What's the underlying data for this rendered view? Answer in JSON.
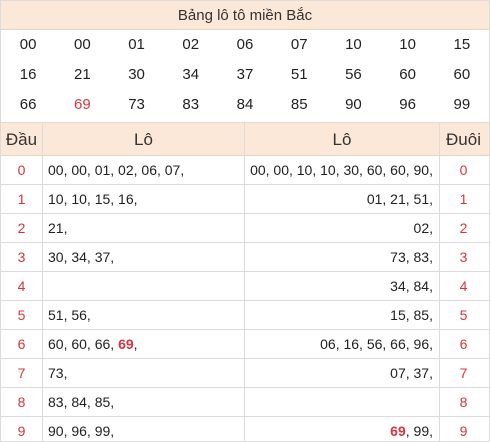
{
  "title": "Bảng lô tô miền Bắc",
  "numbers": [
    [
      "00",
      "00",
      "01",
      "02",
      "06",
      "07",
      "10",
      "10",
      "15"
    ],
    [
      "16",
      "21",
      "30",
      "34",
      "37",
      "51",
      "56",
      "60",
      "60"
    ],
    [
      "66",
      "69",
      "73",
      "83",
      "84",
      "85",
      "90",
      "96",
      "99"
    ]
  ],
  "highlight_number": "69",
  "headers": {
    "dau": "Đầu",
    "lo_left": "Lô",
    "lo_right": "Lô",
    "duoi": "Đuôi"
  },
  "rows": [
    {
      "dau": "0",
      "lo_left": [
        {
          "t": "00, 00, 01, 02, 06, 07,"
        }
      ],
      "lo_right": [
        {
          "t": "00, 00, 10, 10, 30, 60, 60, 90,"
        }
      ],
      "duoi": "0"
    },
    {
      "dau": "1",
      "lo_left": [
        {
          "t": "10, 10, 15, 16,"
        }
      ],
      "lo_right": [
        {
          "t": "01, 21, 51,"
        }
      ],
      "duoi": "1"
    },
    {
      "dau": "2",
      "lo_left": [
        {
          "t": "21,"
        }
      ],
      "lo_right": [
        {
          "t": "02,"
        }
      ],
      "duoi": "2"
    },
    {
      "dau": "3",
      "lo_left": [
        {
          "t": "30, 34, 37,"
        }
      ],
      "lo_right": [
        {
          "t": "73, 83,"
        }
      ],
      "duoi": "3"
    },
    {
      "dau": "4",
      "lo_left": [],
      "lo_right": [
        {
          "t": "34, 84,"
        }
      ],
      "duoi": "4"
    },
    {
      "dau": "5",
      "lo_left": [
        {
          "t": "51, 56,"
        }
      ],
      "lo_right": [
        {
          "t": "15, 85,"
        }
      ],
      "duoi": "5"
    },
    {
      "dau": "6",
      "lo_left": [
        {
          "t": "60, 60, 66, "
        },
        {
          "t": "69",
          "hl": true
        },
        {
          "t": ","
        }
      ],
      "lo_right": [
        {
          "t": "06, 16, 56, 66, 96,"
        }
      ],
      "duoi": "6"
    },
    {
      "dau": "7",
      "lo_left": [
        {
          "t": "73,"
        }
      ],
      "lo_right": [
        {
          "t": "07, 37,"
        }
      ],
      "duoi": "7"
    },
    {
      "dau": "8",
      "lo_left": [
        {
          "t": "83, 84, 85,"
        }
      ],
      "lo_right": [],
      "duoi": "8"
    },
    {
      "dau": "9",
      "lo_left": [
        {
          "t": "90, 96, 99,"
        }
      ],
      "lo_right": [
        {
          "t": "69",
          "hl": true
        },
        {
          "t": ", 99,"
        }
      ],
      "duoi": "9"
    }
  ],
  "colors": {
    "header_bg": "#fbe8d9",
    "accent_red": "#d8343f",
    "border": "#dcdcdc"
  }
}
